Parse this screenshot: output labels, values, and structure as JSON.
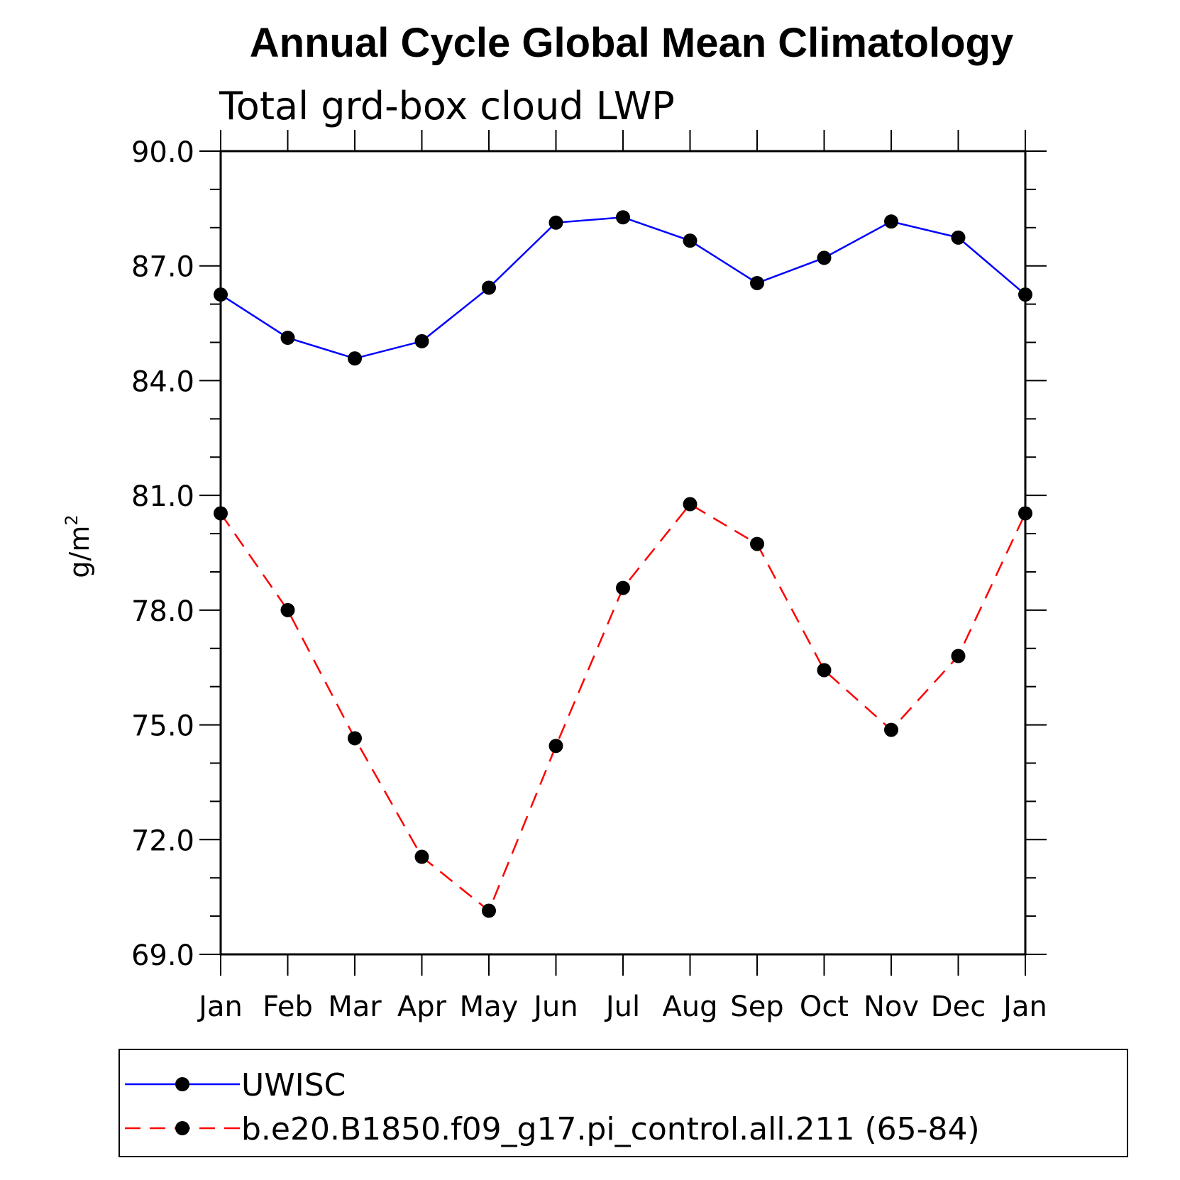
{
  "chart_data": {
    "type": "line",
    "title": "Annual Cycle Global Mean Climatology",
    "subtitle": "Total grd-box cloud LWP",
    "xlabel": "",
    "ylabel": "g/m",
    "ylabel_superscript": "2",
    "categories": [
      "Jan",
      "Feb",
      "Mar",
      "Apr",
      "May",
      "Jun",
      "Jul",
      "Aug",
      "Sep",
      "Oct",
      "Nov",
      "Dec",
      "Jan"
    ],
    "ylim": [
      69.0,
      90.0
    ],
    "yticks": [
      "69.0",
      "72.0",
      "75.0",
      "78.0",
      "81.0",
      "84.0",
      "87.0",
      "90.0"
    ],
    "ytick_values": [
      69.0,
      72.0,
      75.0,
      78.0,
      81.0,
      84.0,
      87.0,
      90.0
    ],
    "series": [
      {
        "name": "UWISC",
        "color": "#0000ff",
        "dash": "solid",
        "values": [
          86.25,
          85.12,
          84.58,
          85.03,
          86.43,
          88.13,
          88.27,
          87.66,
          86.55,
          87.21,
          88.16,
          87.74,
          86.25
        ]
      },
      {
        "name": "b.e20.B1850.f09_g17.pi_control.all.211 (65-84)",
        "color": "#ff0000",
        "dash": "dashed",
        "values": [
          80.53,
          78.0,
          74.65,
          71.55,
          70.14,
          74.45,
          78.58,
          80.77,
          79.73,
          76.43,
          74.87,
          76.8,
          80.53
        ]
      }
    ],
    "marker": "filled-circle",
    "marker_color": "#000000",
    "legend_position": "bottom"
  }
}
